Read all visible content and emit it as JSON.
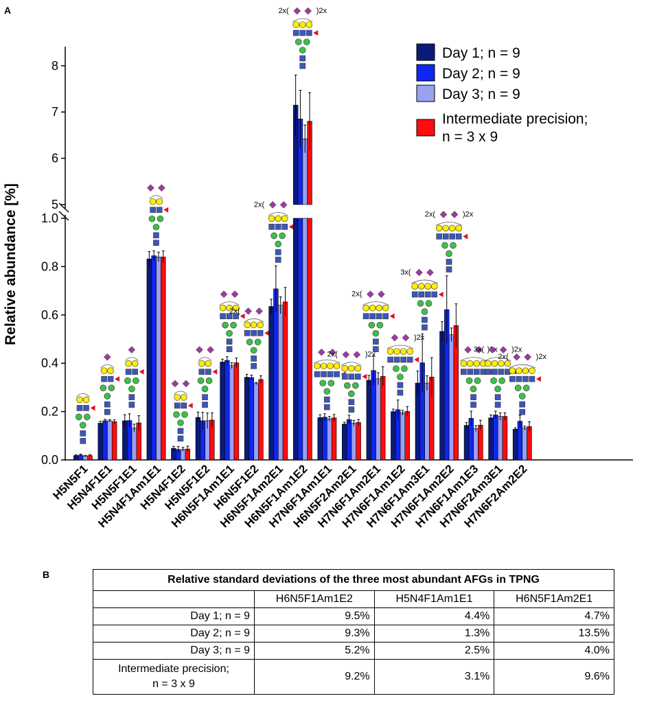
{
  "panel_a_label": "A",
  "panel_b_label": "B",
  "colors": {
    "day1": "#0a1b7a",
    "day2": "#0f27f0",
    "day3": "#9aa0f2",
    "ip": "#ff0c0c",
    "glycan_gal": "#ffee00",
    "glycan_glcnac": "#3d57b8",
    "glycan_man": "#3fbf4a",
    "glycan_neu": "#9d3ba2",
    "glycan_fuc": "#e0102a"
  },
  "chart_data": {
    "type": "bar",
    "title": "",
    "xlabel": "",
    "ylabel": "Relative abundance [%]",
    "broken_axis": {
      "lower_range": [
        0,
        1.0
      ],
      "upper_range": [
        5,
        8.5
      ],
      "lower_ticks": [
        "0.0",
        "0.2",
        "0.4",
        "0.6",
        "0.8",
        "1.0"
      ],
      "upper_ticks": [
        "5",
        "6",
        "7",
        "8"
      ]
    },
    "categories": [
      "H5N5F1",
      "H5N4F1E1",
      "H5N5F1E1",
      "H5N4F1Am1E1",
      "H5N4F1E2",
      "H5N5F1E2",
      "H6N5F1Am1E1",
      "H6N5F1E2",
      "H6N5F1Am2E1",
      "H6N5F1Am1E2",
      "H7N6F1Am1E1",
      "H6N5F2Am2E1",
      "H7N6F1Am2E1",
      "H7N6F1Am1E2",
      "H7N6F1Am3E1",
      "H7N6F1Am2E2",
      "H7N6F1Am1E3",
      "H7N6F2Am3E1",
      "H7N6F2Am2E2"
    ],
    "series": [
      {
        "name": "Day 1; n = 9",
        "key": "day1",
        "values": [
          0.018,
          0.152,
          0.162,
          0.832,
          0.048,
          0.176,
          0.405,
          0.342,
          0.635,
          7.15,
          0.175,
          0.148,
          0.33,
          0.2,
          0.318,
          0.532,
          0.143,
          0.174,
          0.127
        ],
        "errors": [
          0.003,
          0.008,
          0.025,
          0.03,
          0.008,
          0.022,
          0.012,
          0.012,
          0.03,
          0.65,
          0.012,
          0.008,
          0.02,
          0.01,
          0.05,
          0.04,
          0.012,
          0.012,
          0.006
        ]
      },
      {
        "name": "Day 2; n = 9",
        "key": "day2",
        "values": [
          0.02,
          0.162,
          0.163,
          0.845,
          0.043,
          0.162,
          0.412,
          0.341,
          0.708,
          6.85,
          0.177,
          0.167,
          0.37,
          0.208,
          0.402,
          0.622,
          0.172,
          0.186,
          0.16
        ],
        "errors": [
          0.004,
          0.006,
          0.028,
          0.02,
          0.012,
          0.035,
          0.015,
          0.01,
          0.095,
          0.62,
          0.014,
          0.018,
          0.06,
          0.04,
          0.12,
          0.14,
          0.03,
          0.016,
          0.025
        ]
      },
      {
        "name": "Day 3; n = 9",
        "key": "day3",
        "values": [
          0.016,
          0.162,
          0.132,
          0.84,
          0.044,
          0.162,
          0.39,
          0.316,
          0.64,
          6.42,
          0.17,
          0.152,
          0.336,
          0.195,
          0.318,
          0.518,
          0.13,
          0.18,
          0.132
        ],
        "errors": [
          0.003,
          0.005,
          0.016,
          0.02,
          0.008,
          0.032,
          0.012,
          0.005,
          0.035,
          0.3,
          0.01,
          0.012,
          0.025,
          0.01,
          0.03,
          0.028,
          0.012,
          0.015,
          0.008
        ],
        "style": "light"
      },
      {
        "name": "Intermediate precision; n = 3 x 9",
        "key": "ip",
        "values": [
          0.018,
          0.158,
          0.153,
          0.84,
          0.045,
          0.165,
          0.402,
          0.333,
          0.654,
          6.8,
          0.174,
          0.155,
          0.346,
          0.201,
          0.343,
          0.556,
          0.144,
          0.18,
          0.138
        ],
        "errors": [
          0.004,
          0.008,
          0.03,
          0.025,
          0.012,
          0.03,
          0.02,
          0.015,
          0.06,
          0.62,
          0.014,
          0.012,
          0.04,
          0.02,
          0.08,
          0.09,
          0.02,
          0.015,
          0.02
        ]
      }
    ],
    "legend": {
      "position": "top-right",
      "entries": [
        "Day 1; n = 9",
        "Day 2; n = 9",
        "Day 3; n = 9",
        "Intermediate precision;",
        "n = 3 x 9"
      ]
    },
    "glycan_annotations": [
      "2x",
      "3x",
      "2x(",
      "3x(",
      ")2x",
      ")3x"
    ]
  },
  "table": {
    "title": "Relative standard deviations of the three most abundant AFGs in TPNG",
    "columns": [
      "H6N5F1Am1E2",
      "H5N4F1Am1E1",
      "H6N5F1Am2E1"
    ],
    "rows": [
      {
        "label": "Day 1; n = 9",
        "values": [
          "9.5%",
          "4.4%",
          "4.7%"
        ]
      },
      {
        "label": "Day 2; n = 9",
        "values": [
          "9.3%",
          "1.3%",
          "13.5%"
        ]
      },
      {
        "label": "Day 3; n = 9",
        "values": [
          "5.2%",
          "2.5%",
          "4.0%"
        ]
      },
      {
        "label": "Intermediate precision;",
        "label2": "n = 3 x 9",
        "values": [
          "9.2%",
          "3.1%",
          "9.6%"
        ]
      }
    ]
  }
}
